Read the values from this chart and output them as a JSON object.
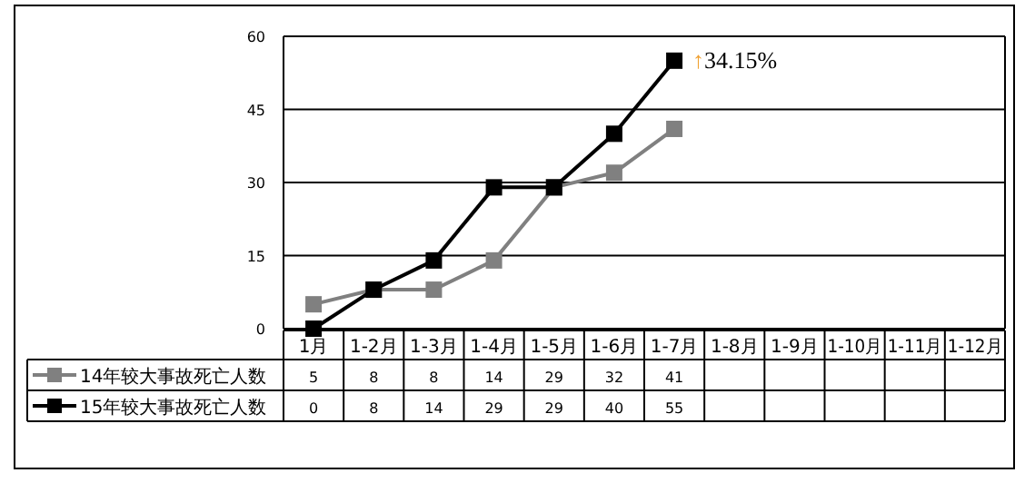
{
  "chart_data": {
    "type": "line",
    "categories": [
      "1月",
      "1-2月",
      "1-3月",
      "1-4月",
      "1-5月",
      "1-6月",
      "1-7月",
      "1-8月",
      "1-9月",
      "1-10月",
      "1-11月",
      "1-12月"
    ],
    "series": [
      {
        "name": "14年较大事故死亡人数",
        "color": "#808080",
        "values": [
          5,
          8,
          8,
          14,
          29,
          32,
          41,
          null,
          null,
          null,
          null,
          null
        ]
      },
      {
        "name": "15年较大事故死亡人数",
        "color": "#000000",
        "values": [
          0,
          8,
          14,
          29,
          29,
          40,
          55,
          null,
          null,
          null,
          null,
          null
        ]
      }
    ],
    "ylim": [
      0,
      60
    ],
    "yticks": [
      0,
      15,
      30,
      45,
      60
    ],
    "grid": "y",
    "legend": "bottom left",
    "marker": "square",
    "line_style": "solid",
    "data_labels": true,
    "annotations": [
      {
        "text": "↑34.15%",
        "x": "1-7月",
        "y": 55
      }
    ]
  }
}
